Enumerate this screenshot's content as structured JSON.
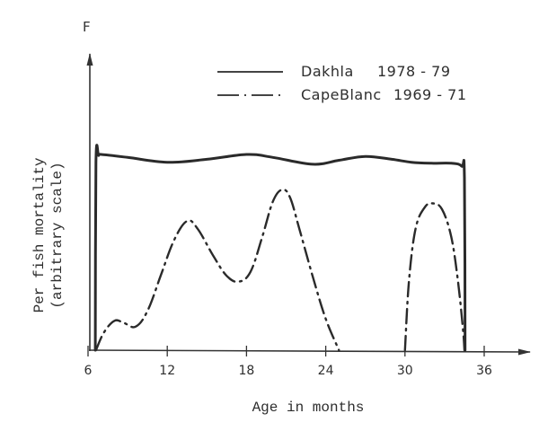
{
  "chart_data": {
    "type": "line",
    "title": "",
    "xlabel": "Age in months",
    "ylabel_line1": "Per fish mortality",
    "ylabel_line2": "(arbitrary scale)",
    "y_axis_symbol": "F",
    "xlim": [
      6,
      38
    ],
    "ylim": [
      0,
      13.5
    ],
    "x_ticks": [
      6,
      12,
      18,
      24,
      30,
      36
    ],
    "x_tick_labels": [
      "6",
      "12",
      "18",
      "24",
      "30",
      "36"
    ],
    "y_ticks": [],
    "grid": false,
    "legend_position": "top-right",
    "series": [
      {
        "name": "Dakhla 1978-79",
        "label_name": "Dakhla",
        "label_years": "1978 - 79",
        "style": "solid",
        "color": "#2a2a2a",
        "x": [
          6.55,
          6.6,
          6.8,
          7.0,
          9.0,
          12.0,
          15.0,
          18.0,
          20.0,
          23.0,
          25.0,
          27.0,
          29.0,
          30.5,
          32.0,
          33.5,
          34.3,
          34.5,
          34.55
        ],
        "y": [
          0,
          9.6,
          9.95,
          10.0,
          9.85,
          9.6,
          9.75,
          10.0,
          9.85,
          9.5,
          9.7,
          9.9,
          9.75,
          9.6,
          9.55,
          9.55,
          9.4,
          8.8,
          0
        ]
      },
      {
        "name": "Cape Blanc 1969-71",
        "label_name": "CapeBlanc",
        "label_years": "1969 - 71",
        "style": "dashdot",
        "color": "#2a2a2a",
        "segments": [
          {
            "x": [
              6.6,
              7.2,
              8.0,
              8.7,
              9.6,
              10.5,
              11.5,
              12.5,
              13.5,
              14.3,
              15.5,
              16.5,
              17.4,
              18.3,
              19.2,
              20.0,
              20.7,
              21.3,
              22.0,
              23.0,
              24.0,
              25.0
            ],
            "y": [
              0,
              0.9,
              1.5,
              1.4,
              1.2,
              2.0,
              3.8,
              5.6,
              6.6,
              6.2,
              4.8,
              3.8,
              3.5,
              4.0,
              5.8,
              7.6,
              8.2,
              7.8,
              6.2,
              3.8,
              1.6,
              0
            ]
          },
          {
            "x": [
              30.0,
              30.3,
              30.8,
              31.5,
              32.1,
              32.8,
              33.5,
              34.0,
              34.4,
              34.5
            ],
            "y": [
              0,
              3.5,
              6.2,
              7.3,
              7.5,
              7.2,
              5.8,
              3.6,
              1.0,
              0
            ]
          }
        ]
      }
    ]
  }
}
